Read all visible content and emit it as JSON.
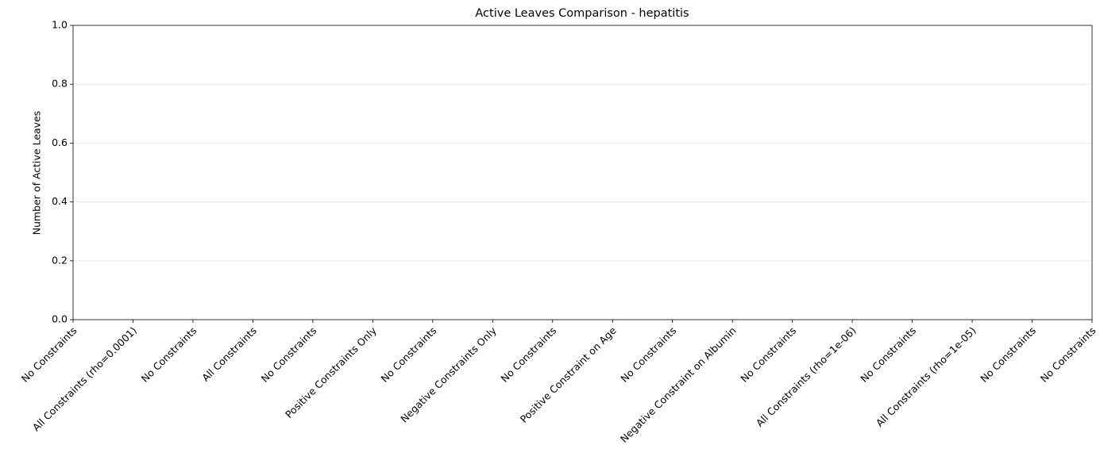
{
  "chart_data": {
    "type": "bar",
    "title": "Active Leaves Comparison - hepatitis",
    "ylabel": "Number of Active Leaves",
    "categories": [
      "No Constraints",
      "All Constraints (rho=0.0001)",
      "No Constraints",
      "All Constraints",
      "No Constraints",
      "Positive Constraints Only",
      "No Constraints",
      "Negative Constraints Only",
      "No Constraints",
      "Positive Constraint on Age",
      "No Constraints",
      "Negative Constraint on Albumin",
      "No Constraints",
      "All Constraints (rho=1e-06)",
      "No Constraints",
      "All Constraints (rho=1e-05)",
      "No Constraints",
      "No Constraints"
    ],
    "values": [
      0,
      0,
      0,
      0,
      0,
      0,
      0,
      0,
      0,
      0,
      0,
      0,
      0,
      0,
      0,
      0,
      0,
      0
    ],
    "color": "#1f77b4",
    "ylim": [
      0,
      1
    ],
    "yticks": [
      {
        "value": 0,
        "label": "0.0"
      },
      {
        "value": 0.2,
        "label": "0.2"
      },
      {
        "value": 0.4,
        "label": "0.4"
      },
      {
        "value": 0.6,
        "label": "0.6"
      },
      {
        "value": 0.8,
        "label": "0.8"
      },
      {
        "value": 1,
        "label": "1.0"
      }
    ],
    "grid": true
  }
}
